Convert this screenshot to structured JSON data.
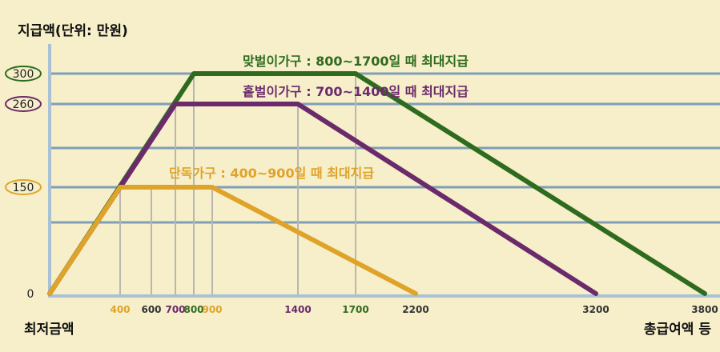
{
  "chart_data": {
    "type": "line",
    "ylabel": "지급액(단위: 만원)",
    "xlabel_left": "최저금액",
    "xlabel_right": "총급여액 등",
    "y_ticks": [
      {
        "value": 300,
        "label": "300",
        "circle_color": "#2e6b1f"
      },
      {
        "value": 260,
        "label": "260",
        "circle_color": "#6b2a6b"
      },
      {
        "value": 150,
        "label": "150",
        "circle_color": "#e0a32a"
      },
      {
        "value": 0,
        "label": "0",
        "circle_color": ""
      }
    ],
    "x_ticks": [
      {
        "value": 400,
        "label": "400",
        "color": "#e0a32a"
      },
      {
        "value": 600,
        "label": "600",
        "color": "#333333"
      },
      {
        "value": 700,
        "label": "700",
        "color": "#6b2a6b"
      },
      {
        "value": 800,
        "label": "800",
        "color": "#2e6b1f"
      },
      {
        "value": 900,
        "label": "900",
        "color": "#e0a32a"
      },
      {
        "value": 1400,
        "label": "1400",
        "color": "#6b2a6b"
      },
      {
        "value": 1700,
        "label": "1700",
        "color": "#2e6b1f"
      },
      {
        "value": 2200,
        "label": "2200",
        "color": "#333333"
      },
      {
        "value": 3200,
        "label": "3200",
        "color": "#333333"
      },
      {
        "value": 3800,
        "label": "3800",
        "color": "#333333"
      }
    ],
    "h_gridlines": [
      300,
      260,
      200,
      150,
      100
    ],
    "v_gridlines": [
      400,
      600,
      700,
      800,
      900,
      1400,
      1700
    ],
    "series": [
      {
        "name": "맞벌이가구 : 800~1700일 때 최대지급",
        "color": "#2e6b1f",
        "points": [
          [
            0,
            0
          ],
          [
            800,
            300
          ],
          [
            1700,
            300
          ],
          [
            3800,
            0
          ]
        ]
      },
      {
        "name": "홑벌이가구 : 700~1400일 때 최대지급",
        "color": "#6b2a6b",
        "points": [
          [
            0,
            0
          ],
          [
            700,
            260
          ],
          [
            1400,
            260
          ],
          [
            3200,
            0
          ]
        ]
      },
      {
        "name": "단독가구 : 400~900일 때 최대지급",
        "color": "#e0a32a",
        "points": [
          [
            0,
            0
          ],
          [
            400,
            150
          ],
          [
            900,
            150
          ],
          [
            2200,
            0
          ]
        ]
      }
    ]
  },
  "colors": {
    "background": "#f6efc9",
    "grid": "#7f9fb8",
    "axis": "#a9c1d4"
  }
}
